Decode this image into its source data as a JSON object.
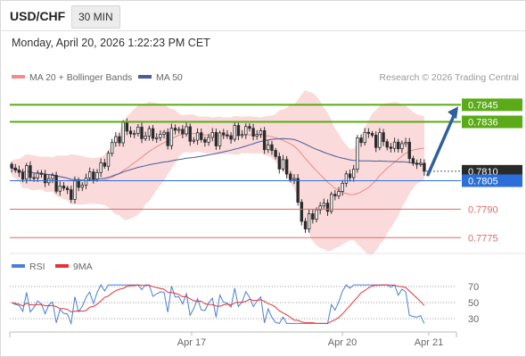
{
  "header": {
    "symbol": "USD/CHF",
    "timeframe": "30 MIN"
  },
  "timestamp": "Monday, April 20, 2026 1:22:23 PM CET",
  "legend": {
    "ma20_label": "MA 20 + Bollinger Bands",
    "ma50_label": "MA 50",
    "copyright": "Research © 2026 Trading Central",
    "rsi_label": "RSI",
    "rsi_ma_label": "9MA"
  },
  "colors": {
    "resistance": "#5aab17",
    "current_price": "#2a2a2a",
    "pivot": "#2c6fd8",
    "support": "#e06a6a",
    "bollinger_fill": "#f7c6c6",
    "ma50": "#4a5a9e",
    "up_arrow": "#2f5f9c",
    "rsi": "#4a7fd6",
    "rsi_ma": "#e33333"
  },
  "chart_data": [
    {
      "type": "candlestick",
      "ylim": [
        0.7768,
        0.785
      ],
      "x_tick_labels": [
        "Apr 17",
        "Apr 20",
        "Apr 21"
      ],
      "series": [
        {
          "name": "MA 20 + Bollinger Bands"
        },
        {
          "name": "MA 50"
        }
      ],
      "levels": [
        {
          "value": 0.7845,
          "label": "0.7845",
          "kind": "resistance"
        },
        {
          "value": 0.7836,
          "label": "0.7836",
          "kind": "resistance"
        },
        {
          "value": 0.781,
          "label": "0.7810",
          "kind": "current"
        },
        {
          "value": 0.7805,
          "label": "0.7805",
          "kind": "pivot"
        },
        {
          "value": 0.779,
          "label": "0.7790",
          "kind": "support"
        },
        {
          "value": 0.7775,
          "label": "0.7775",
          "kind": "support"
        }
      ],
      "forecast_arrow": {
        "from": 0.781,
        "to": 0.7845,
        "direction": "up"
      }
    },
    {
      "type": "line",
      "ylim": [
        20,
        80
      ],
      "y_ticks": [
        70,
        50,
        30
      ],
      "series": [
        {
          "name": "RSI"
        },
        {
          "name": "9MA"
        }
      ]
    }
  ]
}
